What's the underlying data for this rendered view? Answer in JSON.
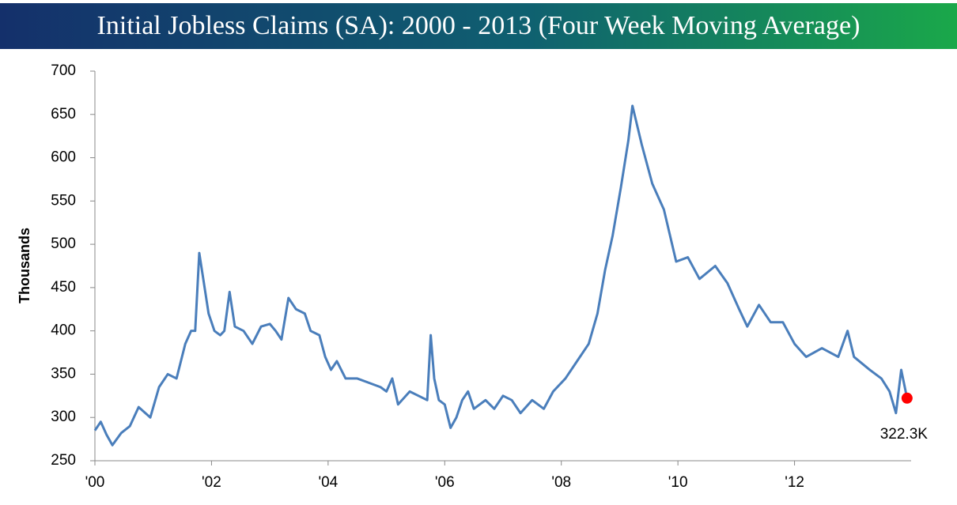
{
  "chart_data": {
    "type": "line",
    "title": "Initial Jobless Claims (SA): 2000 - 2013 (Four Week Moving Average)",
    "ylabel": "Thousands",
    "x": [
      2000.0,
      2000.1,
      2000.2,
      2000.3,
      2000.45,
      2000.6,
      2000.75,
      2000.95,
      2001.1,
      2001.25,
      2001.4,
      2001.55,
      2001.65,
      2001.72,
      2001.79,
      2001.87,
      2001.95,
      2002.05,
      2002.15,
      2002.22,
      2002.31,
      2002.4,
      2002.55,
      2002.7,
      2002.85,
      2003.0,
      2003.1,
      2003.2,
      2003.32,
      2003.45,
      2003.6,
      2003.7,
      2003.85,
      2003.95,
      2004.05,
      2004.15,
      2004.3,
      2004.5,
      2004.7,
      2004.9,
      2005.0,
      2005.1,
      2005.2,
      2005.4,
      2005.55,
      2005.7,
      2005.76,
      2005.82,
      2005.9,
      2006.0,
      2006.1,
      2006.2,
      2006.3,
      2006.4,
      2006.5,
      2006.7,
      2006.85,
      2007.0,
      2007.15,
      2007.3,
      2007.5,
      2007.7,
      2007.86,
      2008.07,
      2008.27,
      2008.47,
      2008.62,
      2008.75,
      2008.88,
      2009.02,
      2009.15,
      2009.22,
      2009.38,
      2009.56,
      2009.76,
      2009.97,
      2010.17,
      2010.37,
      2010.64,
      2010.85,
      2011.05,
      2011.19,
      2011.39,
      2011.59,
      2011.8,
      2012.0,
      2012.2,
      2012.47,
      2012.75,
      2012.91,
      2013.02,
      2013.29,
      2013.49,
      2013.63,
      2013.74,
      2013.83,
      2013.93
    ],
    "series": [
      {
        "name": "Initial Jobless Claims",
        "color": "#4a7ebb",
        "values": [
          285,
          295,
          280,
          268,
          282,
          290,
          312,
          300,
          335,
          350,
          345,
          385,
          400,
          400,
          490,
          455,
          420,
          400,
          395,
          400,
          445,
          405,
          400,
          385,
          405,
          408,
          400,
          390,
          438,
          425,
          420,
          400,
          395,
          370,
          355,
          365,
          345,
          345,
          340,
          335,
          330,
          345,
          315,
          330,
          325,
          320,
          395,
          345,
          320,
          315,
          288,
          300,
          320,
          330,
          310,
          320,
          310,
          325,
          320,
          305,
          320,
          310,
          330,
          345,
          365,
          385,
          420,
          470,
          510,
          565,
          620,
          660,
          615,
          570,
          540,
          480,
          485,
          460,
          475,
          455,
          425,
          405,
          430,
          410,
          410,
          385,
          370,
          380,
          370,
          400,
          370,
          355,
          345,
          330,
          305,
          355,
          322.3
        ],
        "value_labels": [
          null,
          null,
          null,
          null,
          null,
          null,
          null,
          null,
          null,
          null,
          null,
          null,
          null,
          null,
          null,
          null,
          null,
          null,
          null,
          null,
          null,
          null,
          null,
          null,
          null,
          null,
          null,
          null,
          null,
          null,
          null,
          null,
          null,
          null,
          null,
          null,
          null,
          null,
          null,
          null,
          null,
          null,
          null,
          null,
          null,
          null,
          null,
          null,
          null,
          null,
          null,
          null,
          null,
          null,
          null,
          null,
          null,
          null,
          null,
          null,
          null,
          null,
          null,
          null,
          null,
          null,
          null,
          null,
          null,
          null,
          null,
          null,
          null,
          null,
          null,
          null,
          null,
          null,
          null,
          null,
          null,
          null,
          null,
          null,
          null,
          null,
          null,
          null,
          null,
          null,
          null,
          null,
          null,
          null,
          null,
          null,
          "322.3K"
        ]
      }
    ],
    "highlight_color": "#ff0000",
    "xlim": [
      2000,
      2014
    ],
    "xticks": [
      {
        "value": 2000,
        "label": "'00"
      },
      {
        "value": 2002,
        "label": "'02"
      },
      {
        "value": 2004,
        "label": "'04"
      },
      {
        "value": 2006,
        "label": "'06"
      },
      {
        "value": 2008,
        "label": "'08"
      },
      {
        "value": 2010,
        "label": "'10"
      },
      {
        "value": 2012,
        "label": "'12"
      }
    ],
    "ylim": [
      250,
      700
    ],
    "yticks": [
      250,
      300,
      350,
      400,
      450,
      500,
      550,
      600,
      650,
      700
    ],
    "grid": false
  }
}
